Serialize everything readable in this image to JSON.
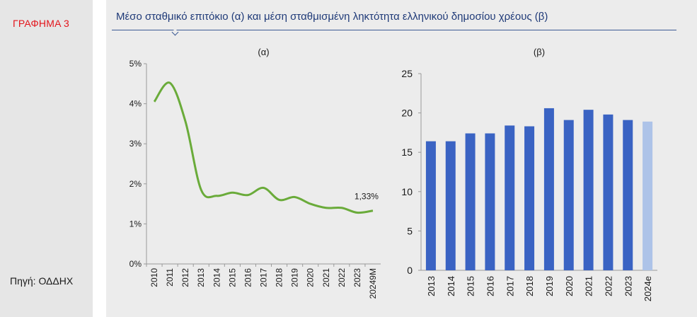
{
  "header": {
    "graph_label": "ΓΡΑΦΗΜΑ 3",
    "title": "Μέσο σταθμικό επιτόκιο (α) και μέση σταθμισμένη ληκτότητα ελληνικού δημοσίου χρέους (β)",
    "source": "Πηγή: ΟΔΔΗΧ"
  },
  "colors": {
    "line": "#6aab3a",
    "bar": "#3a63c3",
    "bar_estimate": "#adc3e8",
    "accent_red": "#e3141b",
    "title_blue": "#1f3a78"
  },
  "chart_data": [
    {
      "type": "line",
      "panel_label": "(α)",
      "x": [
        "2010",
        "2011",
        "2012",
        "2013",
        "2014",
        "2015",
        "2016",
        "2017",
        "2018",
        "2019",
        "2020",
        "2021",
        "2022",
        "2023",
        "20249M"
      ],
      "y_ticks": [
        "0%",
        "1%",
        "2%",
        "3%",
        "4%",
        "5%"
      ],
      "ylim": [
        0,
        5
      ],
      "series": [
        {
          "values": [
            4.05,
            4.52,
            3.55,
            1.85,
            1.7,
            1.78,
            1.72,
            1.9,
            1.6,
            1.67,
            1.5,
            1.4,
            1.4,
            1.28,
            1.33
          ]
        }
      ],
      "annotations": [
        {
          "text": "1,33%",
          "point_index": 14
        }
      ]
    },
    {
      "type": "bar",
      "panel_label": "(β)",
      "categories": [
        "2013",
        "2014",
        "2015",
        "2016",
        "2017",
        "2018",
        "2019",
        "2020",
        "2021",
        "2022",
        "2023",
        "2024e"
      ],
      "y_ticks": [
        "0",
        "5",
        "10",
        "15",
        "20",
        "25"
      ],
      "ylim": [
        0,
        25
      ],
      "values": [
        16.4,
        16.4,
        17.4,
        17.4,
        18.4,
        18.3,
        20.6,
        19.1,
        20.4,
        19.8,
        19.1,
        18.9
      ],
      "estimate_index": 11
    }
  ]
}
